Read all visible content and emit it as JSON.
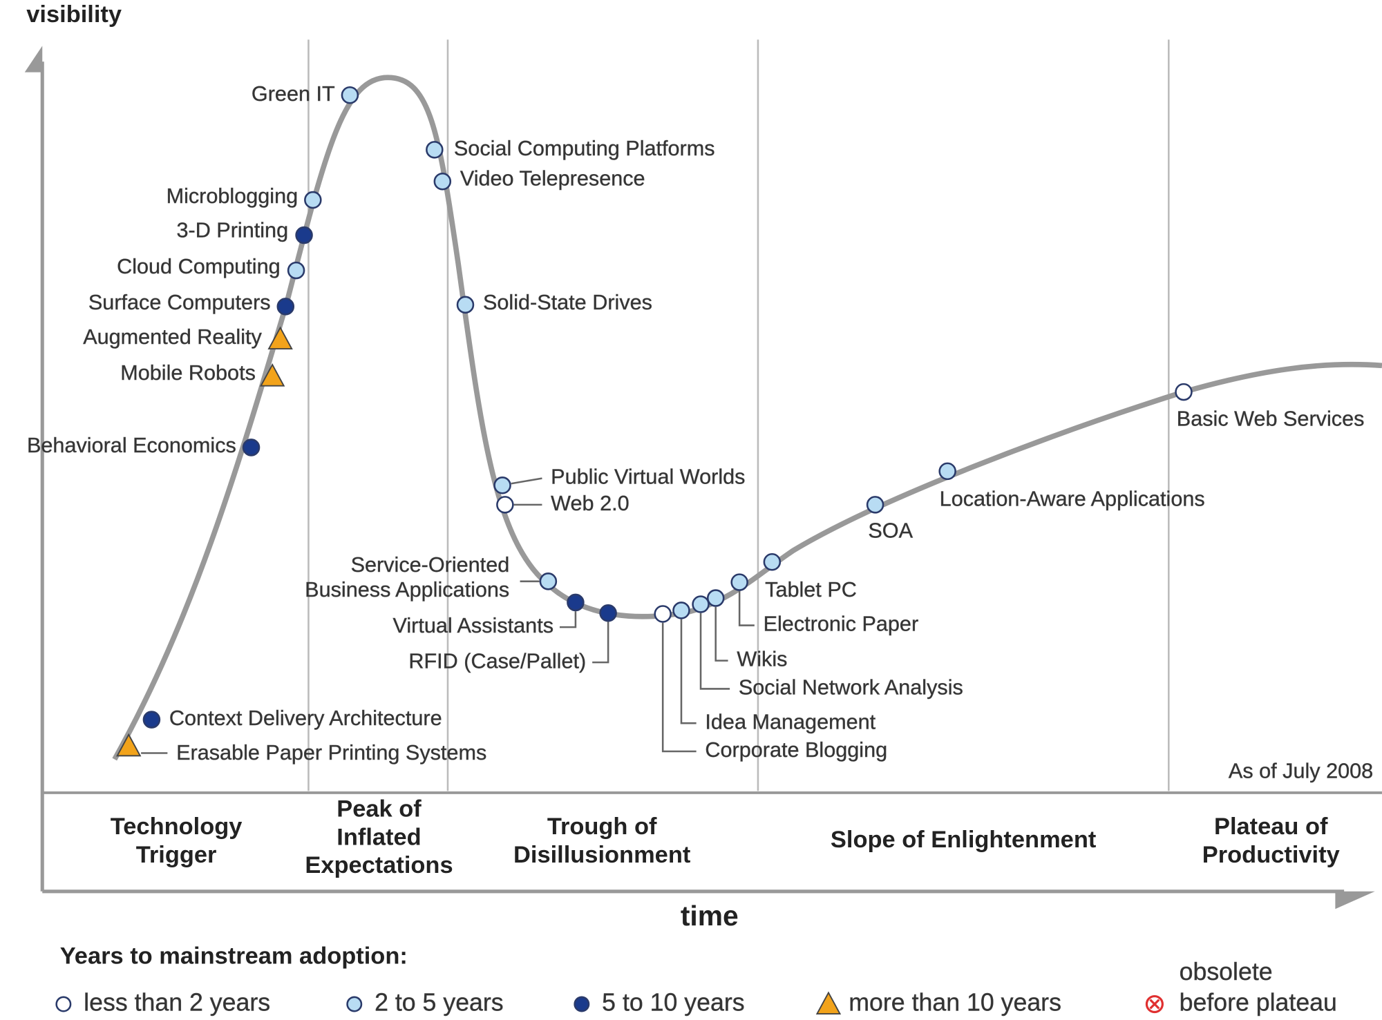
{
  "axes": {
    "y_label": "visibility",
    "x_label": "time"
  },
  "note": "As of July 2008",
  "phases": [
    {
      "lines": [
        "Technology",
        "Trigger"
      ]
    },
    {
      "lines": [
        "Peak of",
        "Inflated",
        "Expectations"
      ]
    },
    {
      "lines": [
        "Trough of",
        "Disillusionment"
      ]
    },
    {
      "lines": [
        "Slope of Enlightenment"
      ]
    },
    {
      "lines": [
        "Plateau of",
        "Productivity"
      ]
    }
  ],
  "technologies": [
    {
      "label": "Green IT",
      "adoption": "2 to 5 years"
    },
    {
      "label": "Social Computing Platforms",
      "adoption": "2 to 5 years"
    },
    {
      "label": "Video Telepresence",
      "adoption": "2 to 5 years"
    },
    {
      "label": "Microblogging",
      "adoption": "2 to 5 years"
    },
    {
      "label": "3-D Printing",
      "adoption": "5 to 10 years"
    },
    {
      "label": "Cloud Computing",
      "adoption": "2 to 5 years"
    },
    {
      "label": "Surface Computers",
      "adoption": "5 to 10 years"
    },
    {
      "label": "Augmented Reality",
      "adoption": "more than 10 years"
    },
    {
      "label": "Mobile Robots",
      "adoption": "more than 10 years"
    },
    {
      "label": "Behavioral Economics",
      "adoption": "5 to 10 years"
    },
    {
      "label": "Solid-State Drives",
      "adoption": "2 to 5 years"
    },
    {
      "label": "Public Virtual Worlds",
      "adoption": "2 to 5 years"
    },
    {
      "label": "Web 2.0",
      "adoption": "less than 2 years"
    },
    {
      "lines": [
        "Service-Oriented",
        "Business Applications"
      ],
      "adoption": "2 to 5 years"
    },
    {
      "label": "Virtual Assistants",
      "adoption": "5 to 10 years"
    },
    {
      "label": "RFID (Case/Pallet)",
      "adoption": "5 to 10 years"
    },
    {
      "label": "Corporate Blogging",
      "adoption": "less than 2 years"
    },
    {
      "label": "Idea Management",
      "adoption": "2 to 5 years"
    },
    {
      "label": "Social Network Analysis",
      "adoption": "2 to 5 years"
    },
    {
      "label": "Wikis",
      "adoption": "2 to 5 years"
    },
    {
      "label": "Electronic Paper",
      "adoption": "2 to 5 years"
    },
    {
      "label": "Tablet PC",
      "adoption": "2 to 5 years"
    },
    {
      "label": "SOA",
      "adoption": "2 to 5 years"
    },
    {
      "label": "Location-Aware Applications",
      "adoption": "2 to 5 years"
    },
    {
      "label": "Basic Web Services",
      "adoption": "less than 2 years"
    },
    {
      "label": "Context Delivery Architecture",
      "adoption": "5 to 10 years"
    },
    {
      "label": "Erasable Paper Printing Systems",
      "adoption": "more than 10 years"
    }
  ],
  "legend": {
    "title": "Years to mainstream adoption:",
    "items": [
      {
        "label": "less than 2 years"
      },
      {
        "label": "2 to 5 years"
      },
      {
        "label": "5 to 10 years"
      },
      {
        "label": "more than 10 years"
      },
      {
        "lines": [
          "obsolete",
          "before plateau"
        ]
      }
    ]
  }
}
